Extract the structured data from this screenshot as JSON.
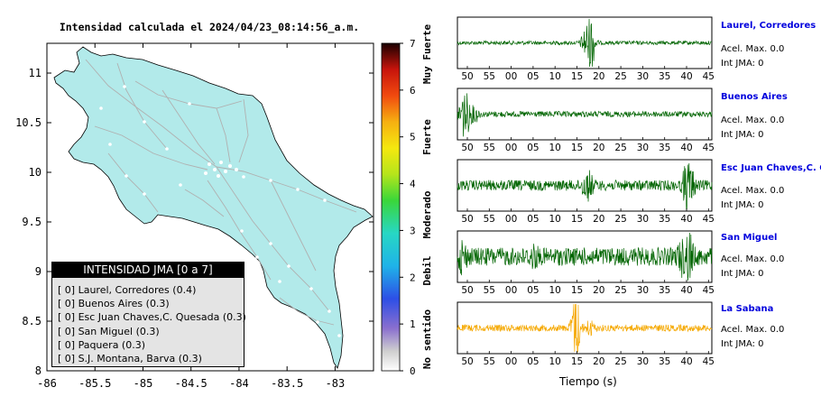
{
  "map": {
    "title": "Intensidad calculada el 2024/04/23_08:14:56_a.m.",
    "y_ticks": [
      "11",
      "10.5",
      "10",
      "9.5",
      "9",
      "8.5",
      "8"
    ],
    "x_ticks": [
      "-86",
      "-85.5",
      "-85",
      "-84.5",
      "-84",
      "-83.5",
      "-83"
    ],
    "land_color": "#b2eaea",
    "legend": {
      "header": "INTENSIDAD JMA [0 a 7]",
      "items": [
        "[ 0]  Laurel, Corredores (0.4)",
        "[ 0]  Buenos Aires (0.3)",
        "[ 0]  Esc Juan Chaves,C. Quesada (0.3)",
        "[ 0]  San Miguel (0.3)",
        "[ 0]  Paquera (0.3)",
        "[ 0]  S.J. Montana, Barva (0.3)"
      ]
    }
  },
  "colorbar": {
    "ticks": [
      "7",
      "6",
      "5",
      "4",
      "3",
      "2",
      "1",
      "0"
    ],
    "labels": [
      "Muy Fuerte",
      "Fuerte",
      "Moderado",
      "Debil",
      "No sentido"
    ]
  },
  "waveforms": {
    "time_ticks": [
      "50",
      "55",
      "00",
      "05",
      "10",
      "15",
      "20",
      "25",
      "30",
      "35",
      "40",
      "45"
    ],
    "xlabel": "Tiempo (s)",
    "panels": [
      {
        "station": "Laurel, Corredores",
        "acc": "Acel. Max. 0.0",
        "int": "Int JMA: 0",
        "color": "#006400"
      },
      {
        "station": "Buenos Aires",
        "acc": "Acel. Max. 0.0",
        "int": "Int JMA: 0",
        "color": "#006400"
      },
      {
        "station": "Esc Juan Chaves,C. Qu",
        "acc": "Acel. Max. 0.0",
        "int": "Int JMA: 0",
        "color": "#006400"
      },
      {
        "station": "San Miguel",
        "acc": "Acel. Max. 0.0",
        "int": "Int JMA: 0",
        "color": "#006400"
      },
      {
        "station": "La Sabana",
        "acc": "Acel. Max. 0.0",
        "int": "Int JMA: 0",
        "color": "#f5a800"
      }
    ]
  },
  "chart_data": [
    {
      "type": "map",
      "title": "Intensidad calculada el 2024/04/23_08:14:56_a.m.",
      "xlim": [
        -86,
        -82.6
      ],
      "ylim": [
        8,
        11.3
      ],
      "x_ticks": [
        -86,
        -85.5,
        -85,
        -84.5,
        -84,
        -83.5,
        -83
      ],
      "y_ticks": [
        8,
        8.5,
        9,
        9.5,
        10,
        10.5,
        11
      ],
      "colorbar": {
        "min": 0,
        "max": 7,
        "labels": [
          "No sentido",
          "Debil",
          "Moderado",
          "Fuerte",
          "Muy Fuerte"
        ]
      },
      "stations": [
        {
          "name": "Laurel, Corredores",
          "jma": 0,
          "value": 0.4
        },
        {
          "name": "Buenos Aires",
          "jma": 0,
          "value": 0.3
        },
        {
          "name": "Esc Juan Chaves,C. Quesada",
          "jma": 0,
          "value": 0.3
        },
        {
          "name": "San Miguel",
          "jma": 0,
          "value": 0.3
        },
        {
          "name": "Paquera",
          "jma": 0,
          "value": 0.3
        },
        {
          "name": "S.J. Montana, Barva",
          "jma": 0,
          "value": 0.3
        }
      ]
    },
    {
      "type": "line",
      "xlabel": "Tiempo (s)",
      "x_tick_labels": [
        "50",
        "55",
        "00",
        "05",
        "10",
        "15",
        "20",
        "25",
        "30",
        "35",
        "40",
        "45"
      ],
      "series": [
        {
          "name": "Laurel, Corredores",
          "max_acceleration": 0.0,
          "jma_intensity": 0
        },
        {
          "name": "Buenos Aires",
          "max_acceleration": 0.0,
          "jma_intensity": 0
        },
        {
          "name": "Esc Juan Chaves,C. Qu",
          "max_acceleration": 0.0,
          "jma_intensity": 0
        },
        {
          "name": "San Miguel",
          "max_acceleration": 0.0,
          "jma_intensity": 0
        },
        {
          "name": "La Sabana",
          "max_acceleration": 0.0,
          "jma_intensity": 0
        }
      ]
    }
  ]
}
